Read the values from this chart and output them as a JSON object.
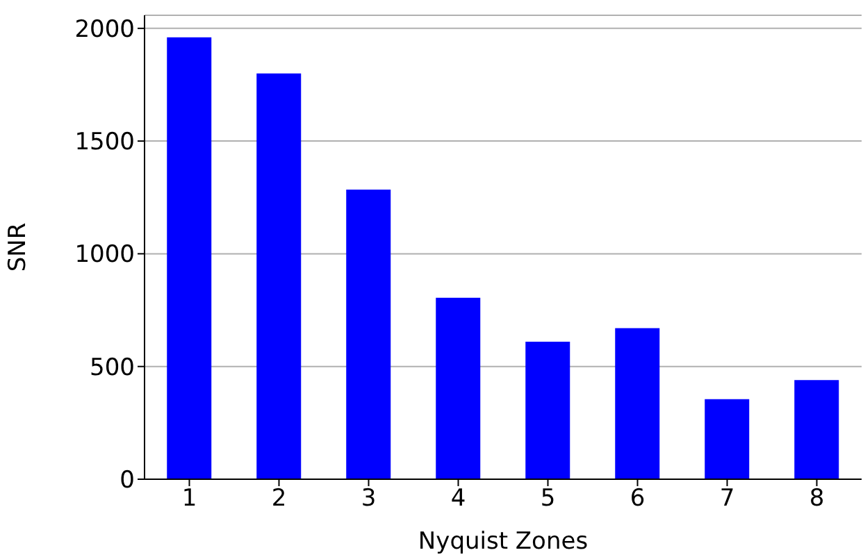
{
  "chart_data": {
    "type": "bar",
    "xlabel": "Nyquist Zones",
    "ylabel": "SNR",
    "categories": [
      "1",
      "2",
      "3",
      "4",
      "5",
      "6",
      "7",
      "8"
    ],
    "values": [
      1960,
      1800,
      1285,
      805,
      610,
      670,
      355,
      440
    ],
    "color": "#0000ff",
    "ylim": [
      0,
      2058
    ],
    "yticks": [
      0,
      500,
      1000,
      1500,
      2000
    ],
    "grid": "y"
  }
}
